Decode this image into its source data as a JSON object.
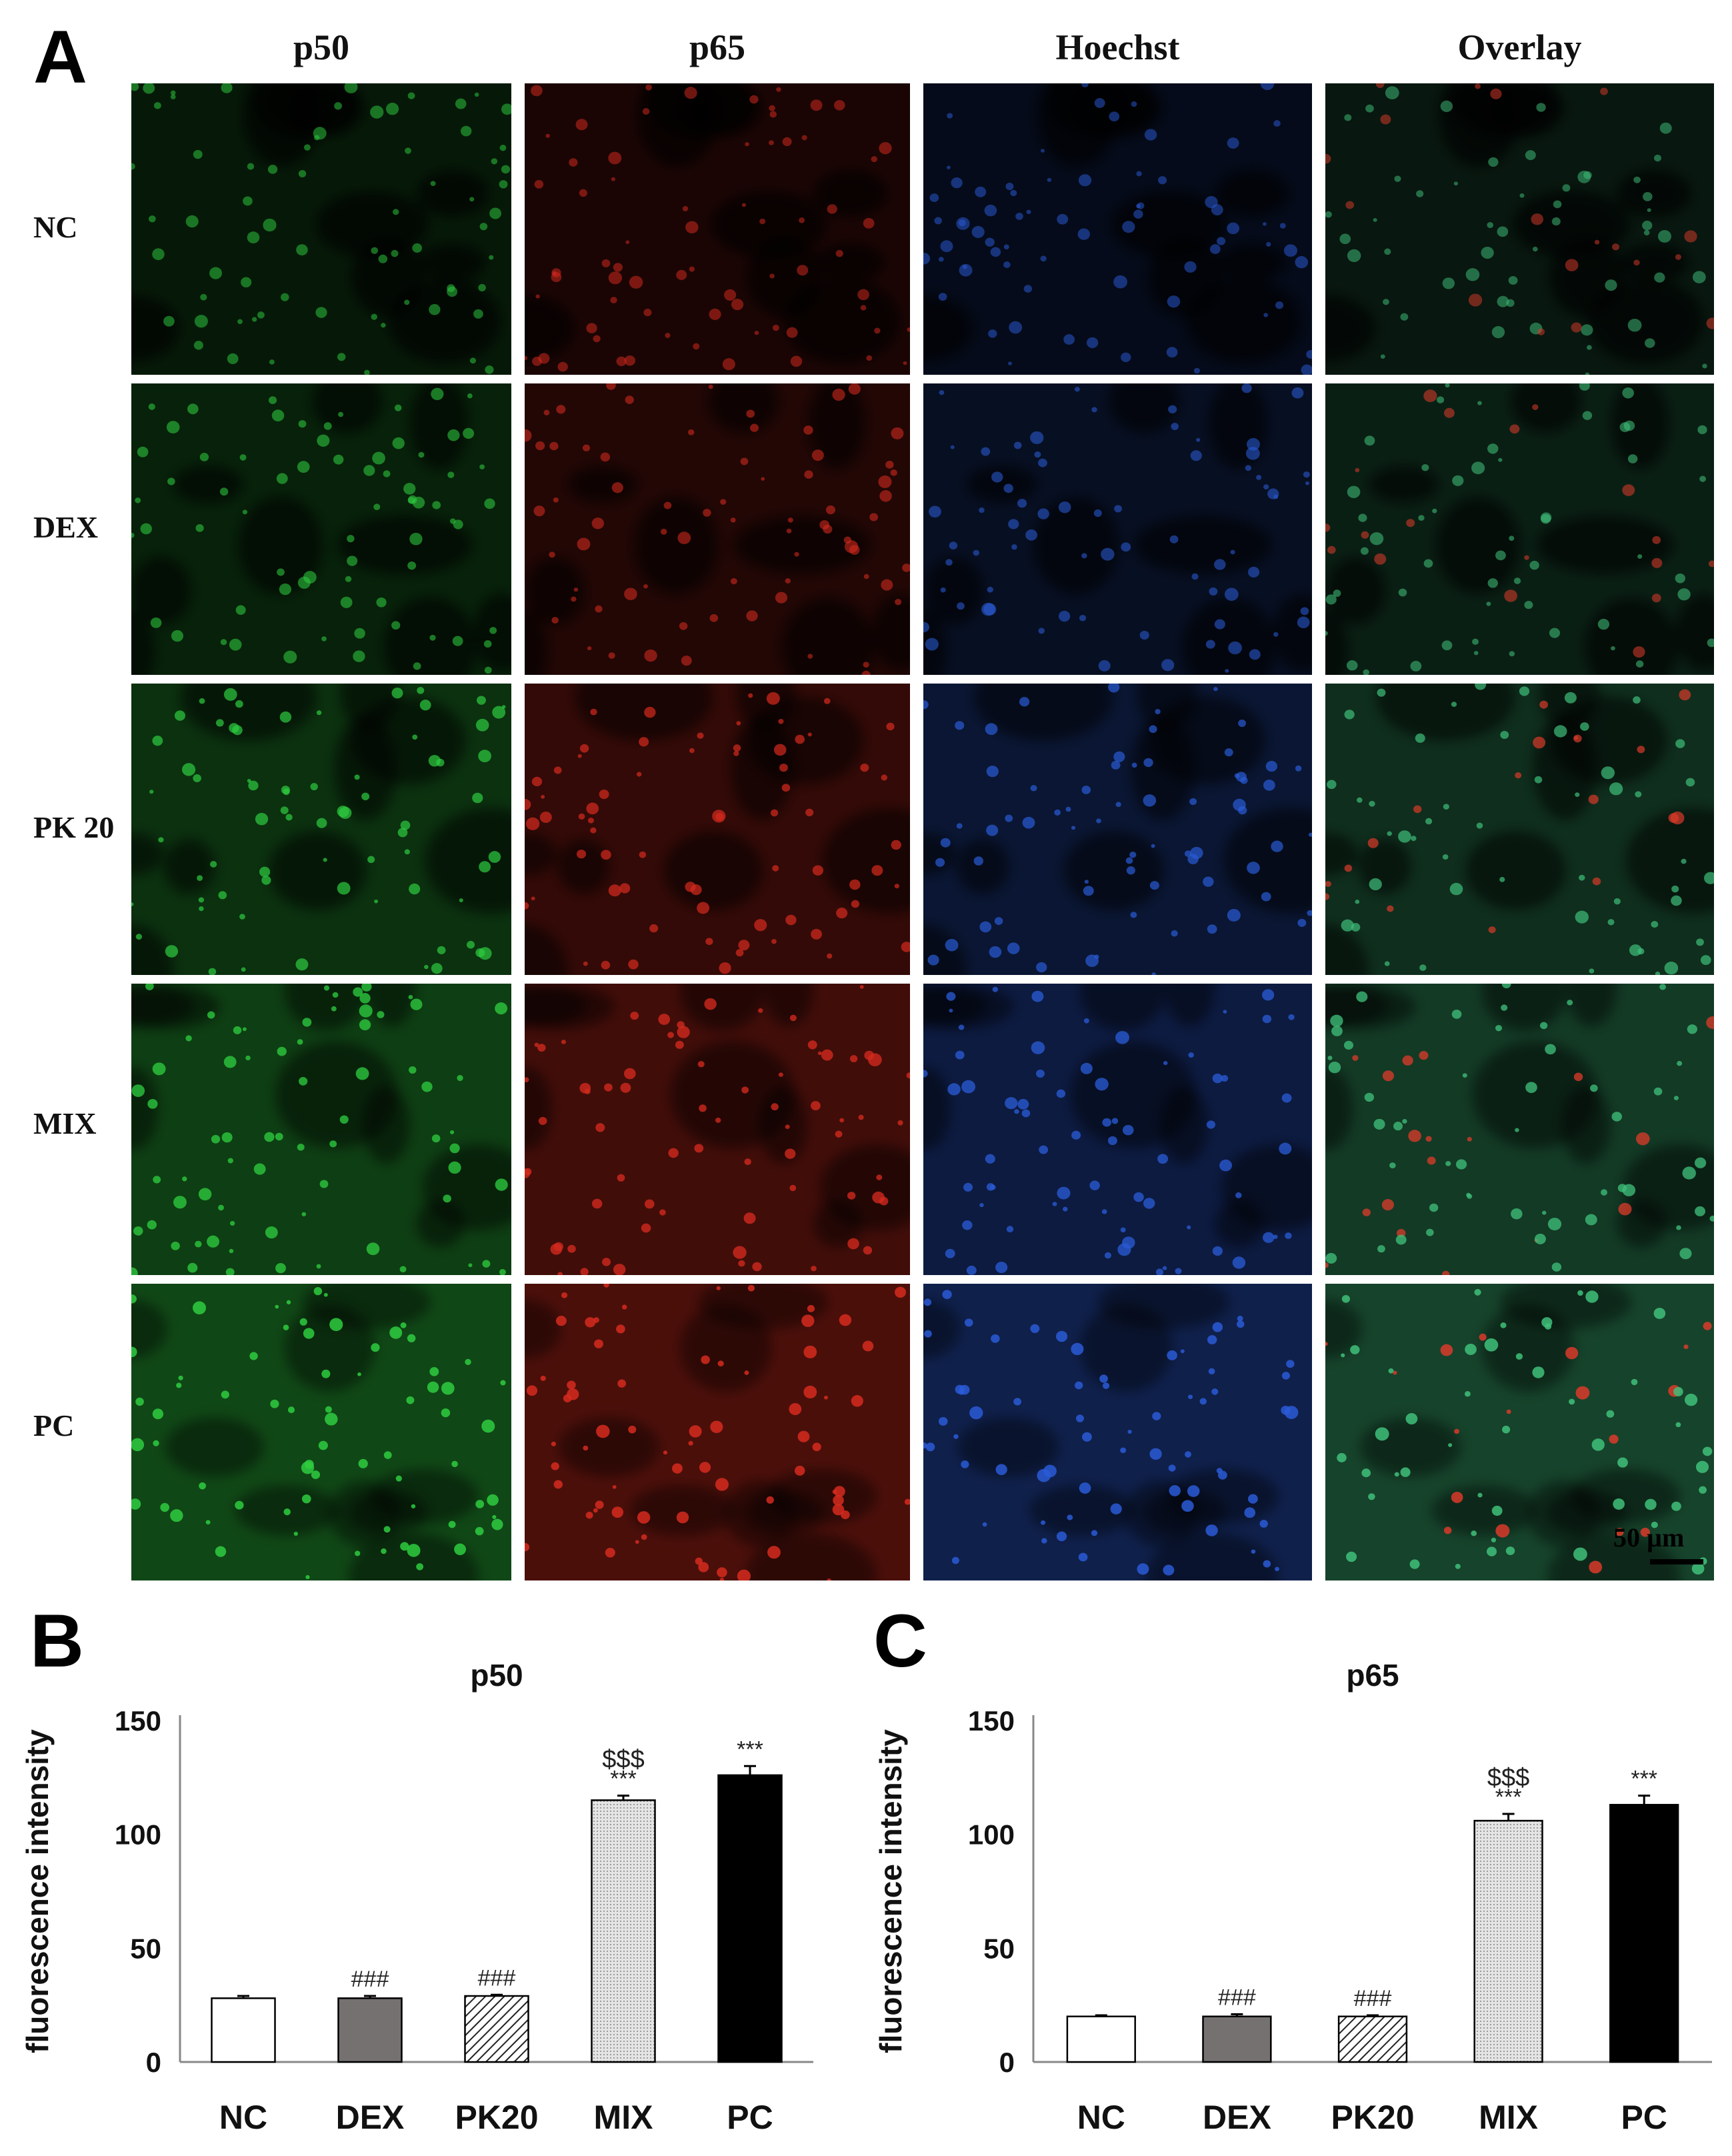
{
  "panel_a": {
    "letter": "A",
    "columns": [
      "p50",
      "p65",
      "Hoechst",
      "Overlay"
    ],
    "rows": [
      "NC",
      "DEX",
      "PK 20",
      "MIX",
      "PC"
    ],
    "column_colors": [
      "#2ecc40",
      "#d62a1e",
      "#2a5bd6",
      "#3fbf7a"
    ],
    "scale_bar": "50 µm"
  },
  "chart_data": [
    {
      "panel": "B",
      "type": "bar",
      "title": "p50",
      "xlabel": "",
      "ylabel": "fluorescence intensity",
      "ylim": [
        0,
        150
      ],
      "yticks": [
        0,
        50,
        100,
        150
      ],
      "categories": [
        "NC",
        "DEX",
        "PK20",
        "MIX",
        "PC"
      ],
      "values": [
        28,
        28,
        29,
        115,
        126
      ],
      "errors": [
        1,
        1,
        0.5,
        2,
        4
      ],
      "annotations": [
        [],
        [
          "###"
        ],
        [
          "###"
        ],
        [
          "$$$",
          "***"
        ],
        [
          "***"
        ]
      ],
      "fills": [
        "white",
        "gray",
        "hatch",
        "dots",
        "black"
      ]
    },
    {
      "panel": "C",
      "type": "bar",
      "title": "p65",
      "xlabel": "",
      "ylabel": "fluorescence intensity",
      "ylim": [
        0,
        150
      ],
      "yticks": [
        0,
        50,
        100,
        150
      ],
      "categories": [
        "NC",
        "DEX",
        "PK20",
        "MIX",
        "PC"
      ],
      "values": [
        20,
        20,
        20,
        106,
        113
      ],
      "errors": [
        0.5,
        1,
        0.5,
        3,
        4
      ],
      "annotations": [
        [],
        [
          "###"
        ],
        [
          "###"
        ],
        [
          "$$$",
          "***"
        ],
        [
          "***"
        ]
      ],
      "fills": [
        "white",
        "gray",
        "hatch",
        "dots",
        "black"
      ]
    }
  ]
}
